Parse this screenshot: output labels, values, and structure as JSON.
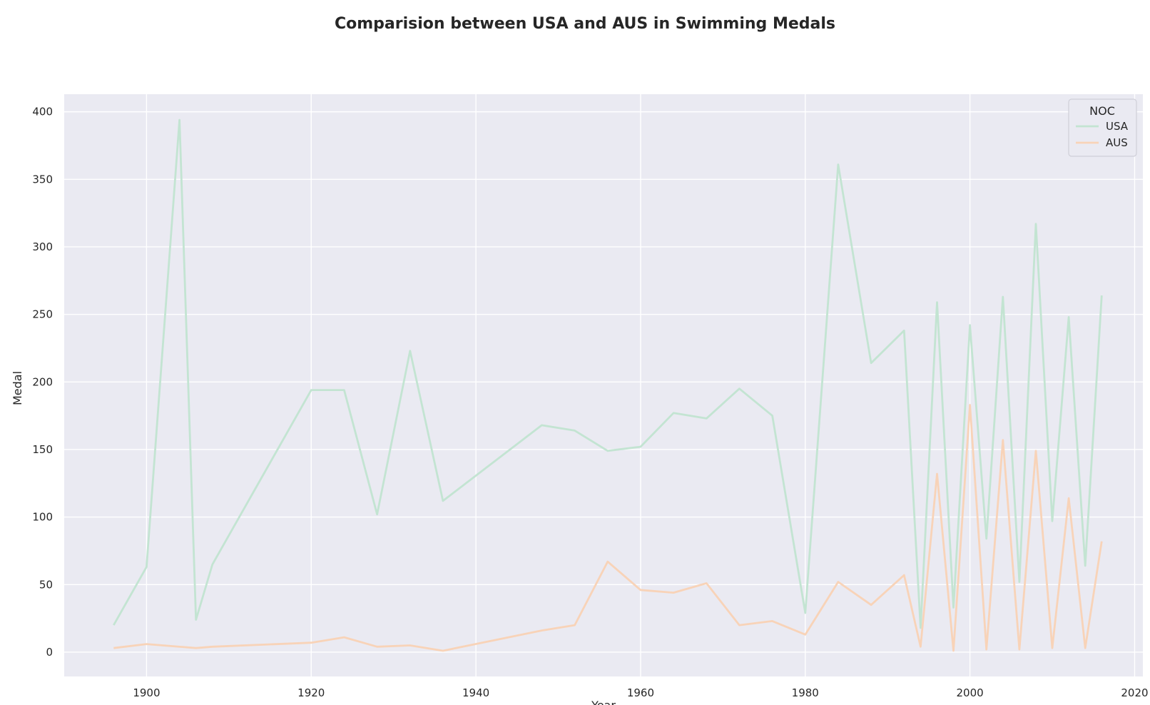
{
  "chart_data": {
    "type": "line",
    "title": "Comparision between USA and AUS in Swimming Medals",
    "xlabel": "Year",
    "ylabel": "Medal",
    "xlim": [
      1890,
      2021
    ],
    "ylim": [
      -18,
      413
    ],
    "xticks": [
      1900,
      1920,
      1940,
      1960,
      1980,
      2000,
      2020
    ],
    "yticks": [
      0,
      50,
      100,
      150,
      200,
      250,
      300,
      350,
      400
    ],
    "grid": true,
    "legend": {
      "title": "NOC",
      "placement": "top-right"
    },
    "series": [
      {
        "name": "USA",
        "color": "#c3e4d2",
        "points": [
          [
            1896,
            20
          ],
          [
            1900,
            63
          ],
          [
            1904,
            394
          ],
          [
            1906,
            24
          ],
          [
            1908,
            65
          ],
          [
            1920,
            194
          ],
          [
            1924,
            194
          ],
          [
            1928,
            102
          ],
          [
            1932,
            223
          ],
          [
            1936,
            112
          ],
          [
            1948,
            168
          ],
          [
            1952,
            164
          ],
          [
            1956,
            149
          ],
          [
            1960,
            152
          ],
          [
            1964,
            177
          ],
          [
            1968,
            173
          ],
          [
            1972,
            195
          ],
          [
            1976,
            175
          ],
          [
            1980,
            29
          ],
          [
            1984,
            361
          ],
          [
            1988,
            214
          ],
          [
            1992,
            238
          ],
          [
            1994,
            18
          ],
          [
            1996,
            259
          ],
          [
            1998,
            33
          ],
          [
            2000,
            242
          ],
          [
            2002,
            84
          ],
          [
            2004,
            263
          ],
          [
            2006,
            52
          ],
          [
            2008,
            317
          ],
          [
            2010,
            97
          ],
          [
            2012,
            248
          ],
          [
            2014,
            64
          ],
          [
            2016,
            264
          ]
        ]
      },
      {
        "name": "AUS",
        "color": "#f8d3b8",
        "points": [
          [
            1896,
            3
          ],
          [
            1900,
            6
          ],
          [
            1906,
            3
          ],
          [
            1908,
            4
          ],
          [
            1920,
            7
          ],
          [
            1924,
            11
          ],
          [
            1928,
            4
          ],
          [
            1932,
            5
          ],
          [
            1936,
            1
          ],
          [
            1948,
            16
          ],
          [
            1952,
            20
          ],
          [
            1956,
            67
          ],
          [
            1960,
            46
          ],
          [
            1964,
            44
          ],
          [
            1968,
            51
          ],
          [
            1972,
            20
          ],
          [
            1976,
            23
          ],
          [
            1980,
            13
          ],
          [
            1984,
            52
          ],
          [
            1988,
            35
          ],
          [
            1992,
            57
          ],
          [
            1994,
            4
          ],
          [
            1996,
            132
          ],
          [
            1998,
            1
          ],
          [
            2000,
            183
          ],
          [
            2002,
            2
          ],
          [
            2004,
            157
          ],
          [
            2006,
            2
          ],
          [
            2008,
            149
          ],
          [
            2010,
            3
          ],
          [
            2012,
            114
          ],
          [
            2014,
            3
          ],
          [
            2016,
            82
          ]
        ]
      }
    ]
  }
}
